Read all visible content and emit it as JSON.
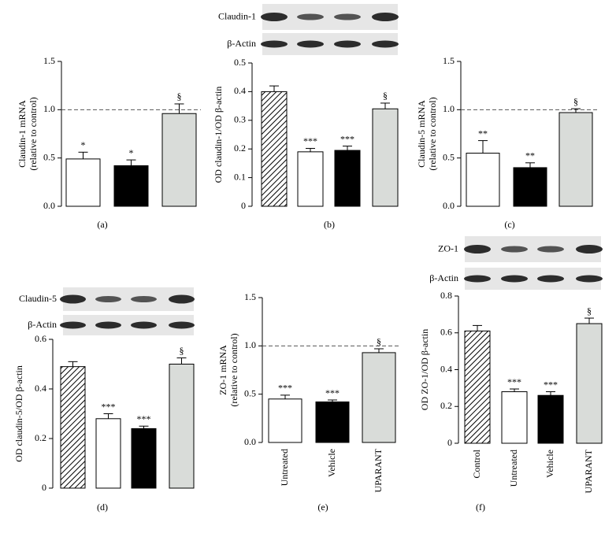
{
  "chart_data": [
    {
      "type": "bar",
      "caption": "(a)",
      "ylabel": [
        "Claudin-1 mRNA",
        "(relative to control)"
      ],
      "categories": [
        null,
        null,
        null
      ],
      "values": [
        0.49,
        0.42,
        0.96
      ],
      "errors": [
        0.07,
        0.06,
        0.1
      ],
      "annotations": [
        "*",
        "*",
        "§"
      ],
      "colors": [
        "#ffffff",
        "#000000",
        "#d9dcd9"
      ],
      "hatched": [
        false,
        false,
        false
      ],
      "ylim": [
        0,
        1.5
      ],
      "yticks": [
        {
          "value": 0,
          "label": "0.0"
        },
        0.5,
        {
          "value": 1,
          "label": "1.0"
        },
        1.5
      ],
      "refline": 1
    },
    {
      "type": "bar",
      "caption": "(b)",
      "ylabel": [
        "OD claudin-1/OD β-actin"
      ],
      "blot_labels": [
        "Claudin-1",
        "β-Actin"
      ],
      "categories": [
        null,
        null,
        null,
        null
      ],
      "values": [
        0.4,
        0.19,
        0.195,
        0.34
      ],
      "errors": [
        0.02,
        0.012,
        0.015,
        0.02
      ],
      "annotations": [
        null,
        "***",
        "***",
        "§"
      ],
      "colors": [
        "#ffffff",
        "#ffffff",
        "#000000",
        "#d9dcd9"
      ],
      "hatched": [
        true,
        false,
        false,
        false
      ],
      "ylim": [
        0,
        0.5
      ],
      "yticks": [
        0,
        0.1,
        0.2,
        0.3,
        0.4,
        0.5
      ]
    },
    {
      "type": "bar",
      "caption": "(c)",
      "ylabel": [
        "Claudin-5 mRNA",
        "(relative to control)"
      ],
      "categories": [
        null,
        null,
        null
      ],
      "values": [
        0.55,
        0.4,
        0.97
      ],
      "errors": [
        0.13,
        0.05,
        0.04
      ],
      "annotations": [
        "**",
        "**",
        "§"
      ],
      "colors": [
        "#ffffff",
        "#000000",
        "#d9dcd9"
      ],
      "hatched": [
        false,
        false,
        false
      ],
      "ylim": [
        0,
        1.5
      ],
      "yticks": [
        {
          "value": 0,
          "label": "0.0"
        },
        0.5,
        {
          "value": 1,
          "label": "1.0"
        },
        1.5
      ],
      "refline": 1
    },
    {
      "type": "bar",
      "caption": "(d)",
      "ylabel": [
        "OD claudin-5/OD β-actin"
      ],
      "blot_labels": [
        "Claudin-5",
        "β-Actin"
      ],
      "categories": [
        null,
        null,
        null,
        null
      ],
      "values": [
        0.49,
        0.28,
        0.24,
        0.5
      ],
      "errors": [
        0.02,
        0.02,
        0.01,
        0.025
      ],
      "annotations": [
        null,
        "***",
        "***",
        "§"
      ],
      "colors": [
        "#ffffff",
        "#ffffff",
        "#000000",
        "#d9dcd9"
      ],
      "hatched": [
        true,
        false,
        false,
        false
      ],
      "ylim": [
        0,
        0.6
      ],
      "yticks": [
        0,
        0.2,
        0.4,
        0.6
      ]
    },
    {
      "type": "bar",
      "caption": "(e)",
      "ylabel": [
        "ZO-1 mRNA",
        "(relative to control)"
      ],
      "categories": [
        "Untreated",
        "Vehicle",
        "UPARANT"
      ],
      "values": [
        0.45,
        0.42,
        0.93
      ],
      "errors": [
        0.04,
        0.02,
        0.04
      ],
      "annotations": [
        "***",
        "***",
        "§"
      ],
      "colors": [
        "#ffffff",
        "#000000",
        "#d9dcd9"
      ],
      "hatched": [
        false,
        false,
        false
      ],
      "ylim": [
        0,
        1.5
      ],
      "yticks": [
        {
          "value": 0,
          "label": "0.0"
        },
        0.5,
        {
          "value": 1,
          "label": "1.0"
        },
        1.5
      ],
      "refline": 1
    },
    {
      "type": "bar",
      "caption": "(f)",
      "ylabel": [
        "OD ZO-1/OD β-actin"
      ],
      "blot_labels": [
        "ZO-1",
        "β-Actin"
      ],
      "categories": [
        "Control",
        "Untreated",
        "Vehicle",
        "UPARANT"
      ],
      "values": [
        0.61,
        0.28,
        0.26,
        0.65
      ],
      "errors": [
        0.03,
        0.015,
        0.02,
        0.03
      ],
      "annotations": [
        null,
        "***",
        "***",
        "§"
      ],
      "colors": [
        "#ffffff",
        "#ffffff",
        "#000000",
        "#d9dcd9"
      ],
      "hatched": [
        true,
        false,
        false,
        false
      ],
      "ylim": [
        0,
        0.8
      ],
      "yticks": [
        0,
        0.2,
        0.4,
        0.6,
        0.8
      ]
    }
  ]
}
